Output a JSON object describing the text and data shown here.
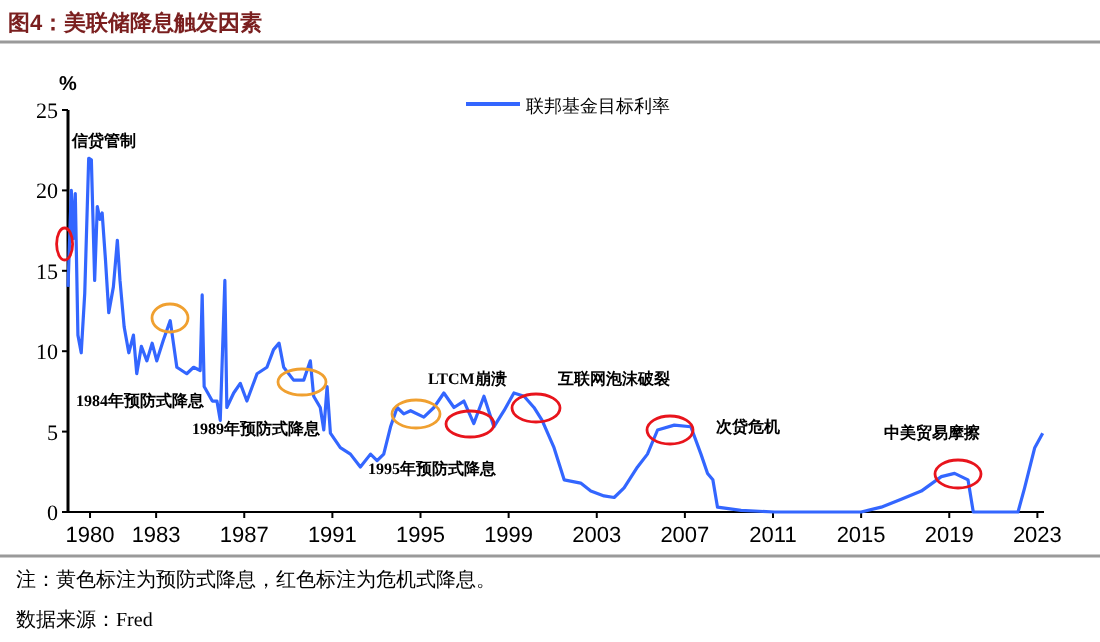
{
  "chart_data": {
    "type": "line",
    "title": "图4：美联储降息触发因素",
    "ylabel": "%",
    "x": [
      1979.0,
      1979.15,
      1979.24,
      1979.33,
      1979.45,
      1979.6,
      1979.76,
      1979.94,
      1980.06,
      1980.21,
      1980.33,
      1980.45,
      1980.55,
      1980.7,
      1980.85,
      1981.06,
      1981.24,
      1981.36,
      1981.55,
      1981.76,
      1981.97,
      1982.12,
      1982.33,
      1982.58,
      1982.82,
      1983.03,
      1983.33,
      1983.64,
      1983.94,
      1984.39,
      1984.7,
      1985.0,
      1985.09,
      1985.18,
      1985.55,
      1985.76,
      1985.91,
      1986.12,
      1986.21,
      1986.52,
      1986.82,
      1987.12,
      1987.58,
      1988.03,
      1988.33,
      1988.58,
      1988.79,
      1989.24,
      1989.7,
      1990.0,
      1990.15,
      1990.45,
      1990.61,
      1990.76,
      1990.91,
      1991.36,
      1991.82,
      1992.27,
      1992.73,
      1993.03,
      1993.33,
      1993.64,
      1993.94,
      1994.24,
      1994.55,
      1995.15,
      1995.61,
      1996.06,
      1996.52,
      1996.97,
      1997.42,
      1997.88,
      1998.33,
      1998.79,
      1999.24,
      1999.7,
      2000.15,
      2000.52,
      2001.06,
      2001.52,
      2002.27,
      2002.73,
      2003.33,
      2003.79,
      2004.24,
      2004.85,
      2005.3,
      2005.76,
      2006.52,
      2007.27,
      2007.73,
      2008.03,
      2008.27,
      2008.48,
      2009.55,
      2011.06,
      2015.0,
      2015.91,
      2016.82,
      2017.73,
      2018.64,
      2019.24,
      2019.85,
      2020.09,
      2022.12,
      2022.42,
      2022.88,
      2023.24
    ],
    "series": [
      {
        "name": "联邦基金目标利率",
        "color": "#3366ff",
        "values": [
          14,
          20.0,
          17,
          19.8,
          11,
          9.9,
          13.6,
          22,
          21.9,
          14.4,
          19,
          18.2,
          18.6,
          15.7,
          12.4,
          14,
          16.9,
          14.4,
          11.5,
          9.9,
          11,
          8.6,
          10.3,
          9.4,
          10.5,
          9.4,
          10.7,
          11.9,
          9,
          8.6,
          9,
          8.8,
          13.5,
          7.8,
          6.9,
          6.9,
          5.7,
          14.4,
          6.5,
          7.4,
          8,
          6.9,
          8.6,
          9,
          10.1,
          10.5,
          9,
          8.2,
          8.2,
          9.4,
          7.2,
          6.5,
          5.1,
          7.8,
          4.9,
          4,
          3.6,
          2.8,
          3.6,
          3.2,
          3.6,
          5.3,
          6.5,
          6.1,
          6.3,
          5.9,
          6.5,
          7.4,
          6.5,
          6.9,
          5.5,
          7.2,
          5.3,
          6.3,
          7.4,
          7.2,
          6.5,
          5.7,
          4.0,
          2.0,
          1.8,
          1.3,
          1.0,
          0.9,
          1.5,
          2.8,
          3.6,
          5.1,
          5.4,
          5.3,
          3.6,
          2.4,
          2.0,
          0.3,
          0.1,
          0,
          0,
          0.3,
          0.8,
          1.3,
          2.2,
          2.4,
          2.0,
          0,
          0,
          1.5,
          4.0,
          4.9
        ]
      }
    ],
    "xlim": [
      1979,
      2023.3
    ],
    "xticks": [
      1980,
      1983,
      1987,
      1991,
      1995,
      1999,
      2003,
      2007,
      2011,
      2015,
      2019,
      2023
    ],
    "ylim": [
      0,
      25
    ],
    "yticks": [
      0,
      5,
      10,
      15,
      20,
      25
    ],
    "grid": false,
    "legend": "top right",
    "marker": "none",
    "line_style": "solid",
    "annotations": [
      "信贷管制",
      "1984年预防式降息",
      "1989年预防式降息",
      "1995年预防式降息",
      "LTCM崩溃",
      "互联网泡沫破裂",
      "次贷危机",
      "中美贸易摩擦",
      "注：黄色标注为预防式降息，红色标注为危机式降息。",
      "数据来源：Fred"
    ]
  }
}
